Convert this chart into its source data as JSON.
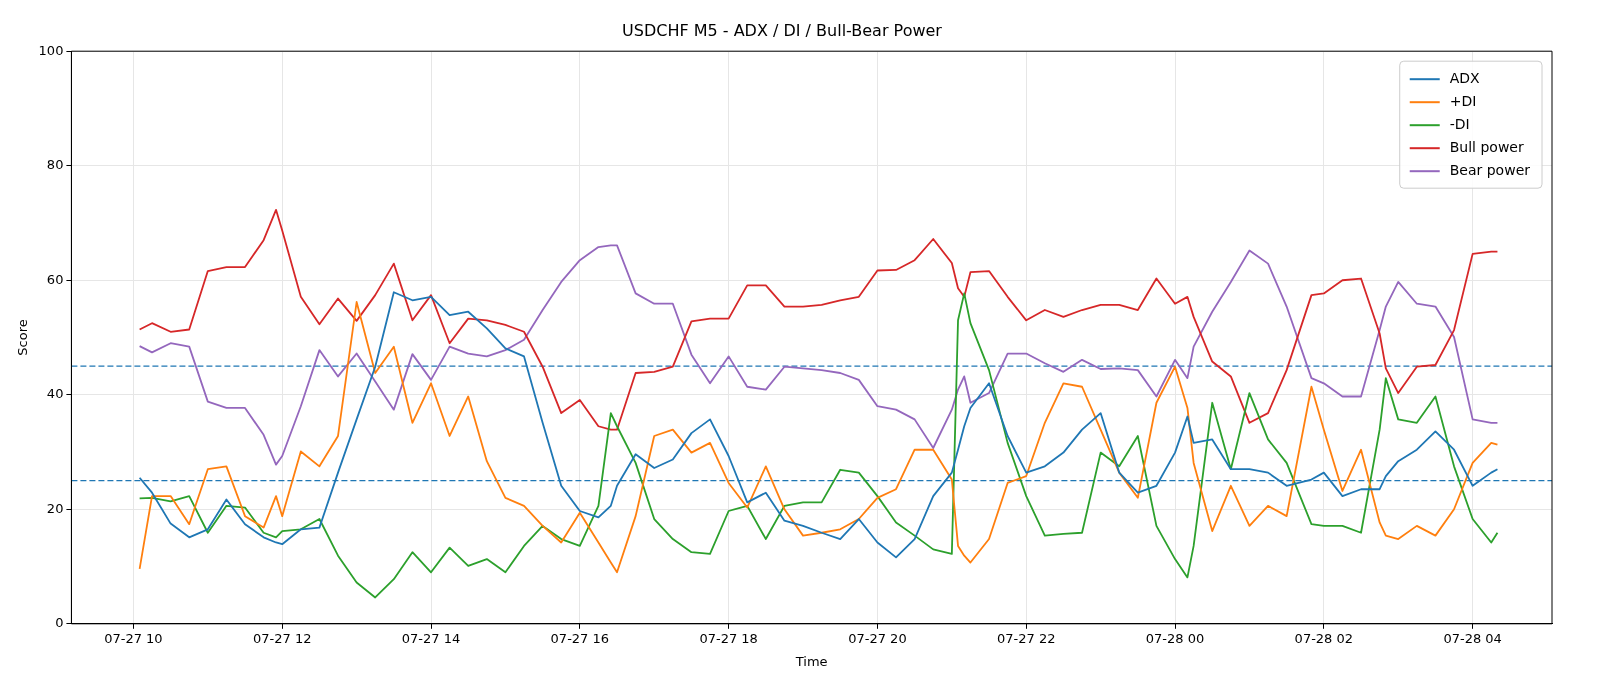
{
  "chart_data": {
    "type": "line",
    "title": "USDCHF M5 - ADX / DI / Bull-Bear Power",
    "xlabel": "Time",
    "ylabel": "Score",
    "x": [
      "--07-27T10:05",
      "--07-27T10:15",
      "--07-27T10:30",
      "--07-27T10:45",
      "--07-27T11:00",
      "--07-27T11:15",
      "--07-27T11:30",
      "--07-27T11:45",
      "--07-27T11:55",
      "--07-27T12:00",
      "--07-27T12:15",
      "--07-27T12:30",
      "--07-27T12:45",
      "--07-27T13:00",
      "--07-27T13:15",
      "--07-27T13:30",
      "--07-27T13:45",
      "--07-27T14:00",
      "--07-27T14:15",
      "--07-27T14:30",
      "--07-27T14:45",
      "--07-27T15:00",
      "--07-27T15:15",
      "--07-27T15:30",
      "--07-27T15:45",
      "--07-27T16:00",
      "--07-27T16:15",
      "--07-27T16:25",
      "--07-27T16:30",
      "--07-27T16:45",
      "--07-27T17:00",
      "--07-27T17:15",
      "--07-27T17:30",
      "--07-27T17:45",
      "--07-27T18:00",
      "--07-27T18:15",
      "--07-27T18:30",
      "--07-27T18:45",
      "--07-27T19:00",
      "--07-27T19:15",
      "--07-27T19:30",
      "--07-27T19:45",
      "--07-27T20:00",
      "--07-27T20:15",
      "--07-27T20:30",
      "--07-27T20:45",
      "--07-27T21:00",
      "--07-27T21:05",
      "--07-27T21:10",
      "--07-27T21:15",
      "--07-27T21:30",
      "--07-27T21:45",
      "--07-27T22:00",
      "--07-27T22:15",
      "--07-27T22:30",
      "--07-27T22:45",
      "--07-27T23:00",
      "--07-27T23:15",
      "--07-27T23:30",
      "--07-27T23:45",
      "--07-28T00:00",
      "--07-28T00:10",
      "--07-28T00:15",
      "--07-28T00:30",
      "--07-28T00:45",
      "--07-28T01:00",
      "--07-28T01:15",
      "--07-28T01:30",
      "--07-28T01:50",
      "--07-28T02:00",
      "--07-28T02:15",
      "--07-28T02:30",
      "--07-28T02:45",
      "--07-28T02:50",
      "--07-28T03:00",
      "--07-28T03:15",
      "--07-28T03:30",
      "--07-28T03:45",
      "--07-28T04:00",
      "--07-28T04:15",
      "--07-28T04:20"
    ],
    "series": [
      {
        "name": "ADX",
        "color": "#1f77b4",
        "values": [
          25.5,
          22.9,
          17.5,
          15.1,
          16.5,
          21.7,
          17.4,
          15.1,
          14.2,
          13.9,
          16.5,
          16.8,
          26.4,
          35.7,
          44.9,
          57.9,
          56.5,
          57.1,
          53.9,
          54.5,
          51.6,
          48.1,
          46.7,
          35.1,
          24.1,
          19.7,
          18.6,
          20.6,
          24.1,
          29.6,
          27.2,
          28.7,
          33.3,
          35.7,
          29.3,
          21.2,
          22.9,
          18,
          17.1,
          15.9,
          14.8,
          18.3,
          14.2,
          11.6,
          14.8,
          22.3,
          26.4,
          30.4,
          34.5,
          37.7,
          42,
          32.8,
          26.4,
          27.5,
          29.9,
          33.9,
          36.8,
          26.4,
          22.9,
          24.1,
          29.9,
          36.2,
          31.6,
          32.2,
          27,
          27,
          26.4,
          24.1,
          25.2,
          26.4,
          22.3,
          23.5,
          23.5,
          25.8,
          28.4,
          30.4,
          33.6,
          30.4,
          24.1,
          26.4,
          27
        ]
      },
      {
        "name": "+DI",
        "color": "#ff7f0e",
        "values": [
          9.6,
          22.3,
          22.3,
          17.4,
          27,
          27.5,
          18.8,
          16.8,
          22.3,
          18.8,
          30.1,
          27.5,
          32.8,
          56.2,
          43.8,
          48.4,
          35.1,
          42,
          32.8,
          39.7,
          28.4,
          22,
          20.6,
          17.1,
          14.2,
          19.4,
          14.2,
          10.7,
          9,
          18.8,
          32.8,
          33.9,
          29.9,
          31.6,
          24.6,
          20.3,
          27.5,
          20,
          15.4,
          15.9,
          16.5,
          18.3,
          22,
          23.5,
          30.4,
          30.4,
          25.2,
          13.6,
          11.9,
          10.7,
          14.8,
          24.6,
          25.8,
          35.1,
          42,
          41.4,
          33.9,
          26.4,
          22,
          38.6,
          44.9,
          37.7,
          28.1,
          16.2,
          24.1,
          17.1,
          20.6,
          18.8,
          41.4,
          33.9,
          23.2,
          30.4,
          17.7,
          15.4,
          14.8,
          17.1,
          15.4,
          20,
          28.1,
          31.6,
          31.3
        ]
      },
      {
        "name": "-DI",
        "color": "#2ca02c",
        "values": [
          21.9,
          22,
          21.4,
          22.3,
          15.9,
          20.6,
          20.3,
          15.9,
          15.1,
          16.2,
          16.5,
          18.3,
          11.9,
          7.2,
          4.6,
          7.8,
          12.5,
          9,
          13.3,
          10.1,
          11.3,
          9,
          13.6,
          17.1,
          14.8,
          13.6,
          20.6,
          36.8,
          34.5,
          28.1,
          18.3,
          14.8,
          12.5,
          12.2,
          19.7,
          20.6,
          14.8,
          20.6,
          21.2,
          21.2,
          26.9,
          26.4,
          22.3,
          17.7,
          15.4,
          13,
          12.2,
          53,
          57.7,
          52.5,
          44.3,
          31.6,
          22.3,
          15.4,
          15.7,
          15.9,
          29.9,
          27.5,
          32.8,
          17.1,
          11.3,
          8.1,
          13.6,
          38.6,
          27,
          40.3,
          32.2,
          28.1,
          17.4,
          17.1,
          17.1,
          15.9,
          33.9,
          42.9,
          35.7,
          35.1,
          39.7,
          27.5,
          18.3,
          14.2,
          15.9
        ]
      },
      {
        "name": "Bull power",
        "color": "#d62728",
        "values": [
          51.4,
          52.5,
          51,
          51.4,
          61.6,
          62.3,
          62.3,
          67,
          72.3,
          68.7,
          57.1,
          52.3,
          56.8,
          52.9,
          57.4,
          62.9,
          53,
          57.4,
          49,
          53.3,
          53,
          52.2,
          51,
          44.9,
          36.8,
          39.1,
          34.5,
          33.9,
          33.9,
          43.8,
          44,
          44.9,
          52.8,
          53.3,
          53.3,
          59.1,
          59.1,
          55.4,
          55.4,
          55.7,
          56.5,
          57.1,
          61.7,
          61.8,
          63.5,
          67.2,
          63,
          58.6,
          57.1,
          61.4,
          61.6,
          57.1,
          53,
          54.8,
          53.6,
          54.8,
          55.7,
          55.7,
          54.8,
          60.3,
          55.9,
          57.1,
          53.6,
          45.8,
          43.2,
          35.1,
          36.8,
          44.3,
          57.4,
          57.7,
          60,
          60.3,
          50.7,
          44.6,
          40.3,
          44.9,
          45.2,
          51.3,
          64.6,
          65,
          65
        ]
      },
      {
        "name": "Bear power",
        "color": "#9467bd",
        "values": [
          48.5,
          47.4,
          49,
          48.4,
          38.8,
          37.7,
          37.7,
          33,
          27.8,
          29.3,
          38,
          47.8,
          43.2,
          47.2,
          42.3,
          37.4,
          47.1,
          42.6,
          48.4,
          47.2,
          46.7,
          47.8,
          49.6,
          54.8,
          59.7,
          63.5,
          65.8,
          66.1,
          66.1,
          57.7,
          55.9,
          55.9,
          47,
          42,
          46.7,
          41.4,
          40.9,
          44.9,
          44.6,
          44.3,
          43.8,
          42.6,
          38,
          37.4,
          35.7,
          30.7,
          37.4,
          40.9,
          43.2,
          38.6,
          40.3,
          47.2,
          47.2,
          45.5,
          44,
          46.1,
          44.5,
          44.6,
          44.3,
          39.7,
          46.1,
          42.9,
          48.4,
          54.5,
          59.7,
          65.2,
          62.9,
          55.4,
          42.9,
          42,
          39.7,
          39.7,
          51.3,
          55.4,
          59.7,
          55.9,
          55.4,
          50.1,
          35.7,
          35.1,
          35.1
        ]
      }
    ],
    "xlim": [
      "--07-27T09:10",
      "--07-28T05:04"
    ],
    "xticks": [
      {
        "value": "--07-27T10:00",
        "label": "07-27 10"
      },
      {
        "value": "--07-27T12:00",
        "label": "07-27 12"
      },
      {
        "value": "--07-27T14:00",
        "label": "07-27 14"
      },
      {
        "value": "--07-27T16:00",
        "label": "07-27 16"
      },
      {
        "value": "--07-27T18:00",
        "label": "07-27 18"
      },
      {
        "value": "--07-27T20:00",
        "label": "07-27 20"
      },
      {
        "value": "--07-27T22:00",
        "label": "07-27 22"
      },
      {
        "value": "--07-28T00:00",
        "label": "07-28 00"
      },
      {
        "value": "--07-28T02:00",
        "label": "07-28 02"
      },
      {
        "value": "--07-28T04:00",
        "label": "07-28 04"
      }
    ],
    "ylim": [
      0,
      100
    ],
    "yticks": [
      0,
      20,
      40,
      60,
      80,
      100
    ],
    "ref_lines": [
      {
        "axis": "y",
        "value": 45,
        "color": "#1f77b4",
        "line_style": "dashed"
      },
      {
        "axis": "y",
        "value": 25,
        "color": "#1f77b4",
        "line_style": "dashed"
      }
    ],
    "grid": true,
    "legend": "top right",
    "marker": "none",
    "line_style": "solid"
  }
}
